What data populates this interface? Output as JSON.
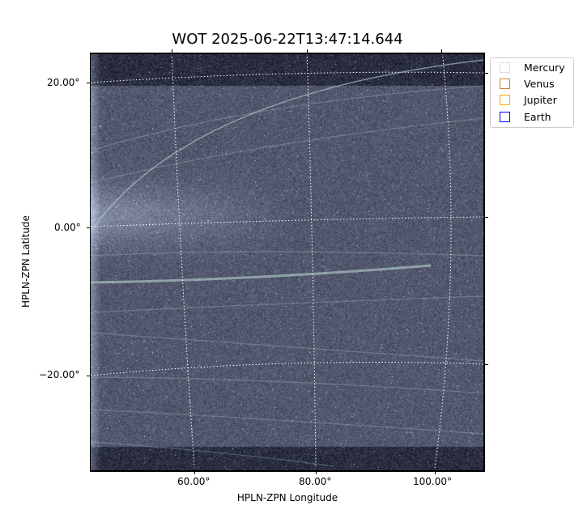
{
  "chart_data": {
    "type": "heatmap",
    "title": "WOT 2025-06-22T13:47:14.644",
    "xlabel": "HPLN-ZPN Longitude",
    "ylabel": "HPLN-ZPN Latitude",
    "x_ticks": [
      "60.00°",
      "80.00°",
      "100.00°"
    ],
    "y_ticks": [
      "20.00°",
      "0.00°",
      "−20.00°"
    ],
    "colormap": "bone",
    "grid": true,
    "legend": {
      "placement": "outside-top-right",
      "entries": [
        {
          "label": "Mercury",
          "color": "#dddddd"
        },
        {
          "label": "Venus",
          "color": "#cd7f32"
        },
        {
          "label": "Jupiter",
          "color": "#ffa500"
        },
        {
          "label": "Earth",
          "color": "#0000ff"
        }
      ]
    }
  }
}
